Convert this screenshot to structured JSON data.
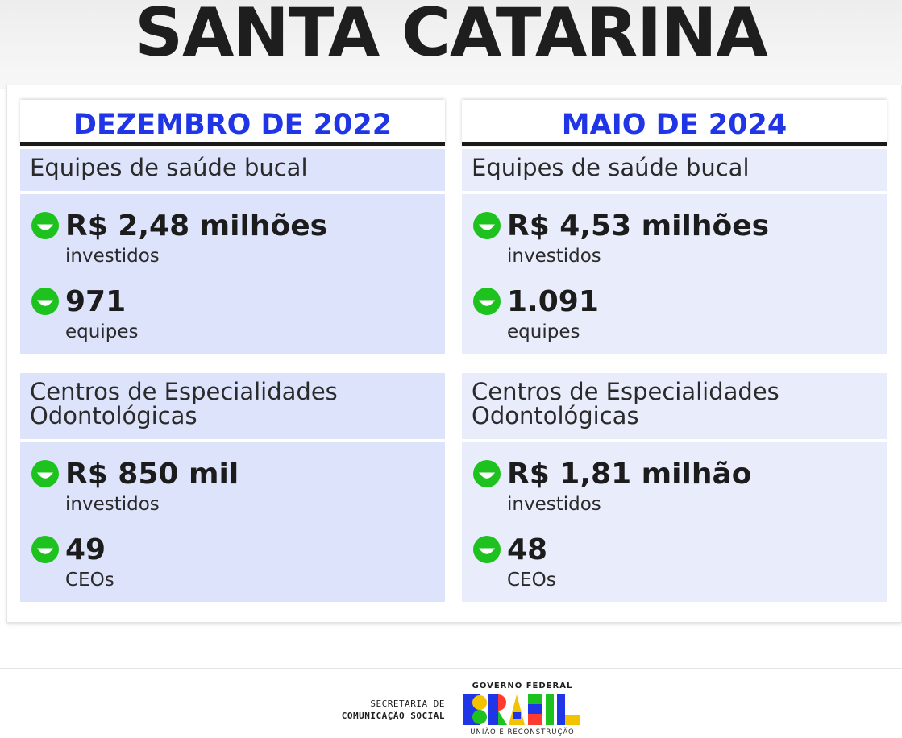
{
  "title": "SANTA CATARINA",
  "columns": [
    {
      "header": "DEZEMBRO DE 2022",
      "sections": [
        {
          "label_line1": "Equipes de saúde bucal",
          "label_line2": "",
          "metrics": [
            {
              "value": "R$ 2,48 milhões",
              "caption": "investidos"
            },
            {
              "value": "971",
              "caption": "equipes"
            }
          ]
        },
        {
          "label_line1": "Centros de Especialidades",
          "label_line2": "Odontológicas",
          "metrics": [
            {
              "value": "R$ 850 mil",
              "caption": "investidos"
            },
            {
              "value": "49",
              "caption": "CEOs"
            }
          ]
        }
      ]
    },
    {
      "header": "MAIO DE 2024",
      "sections": [
        {
          "label_line1": "Equipes de saúde bucal",
          "label_line2": "",
          "metrics": [
            {
              "value": "R$ 4,53 milhões",
              "caption": "investidos"
            },
            {
              "value": "1.091",
              "caption": "equipes"
            }
          ]
        },
        {
          "label_line1": "Centros de Especialidades",
          "label_line2": "Odontológicas",
          "metrics": [
            {
              "value": "R$ 1,81 milhão",
              "caption": "investidos"
            },
            {
              "value": "48",
              "caption": "CEOs"
            }
          ]
        }
      ]
    }
  ],
  "footer": {
    "secretaria_line1": "SECRETARIA DE",
    "secretaria_line2": "COMUNICAÇÃO SOCIAL",
    "logo_top": "GOVERNO FEDERAL",
    "logo_word": "BRASIL",
    "logo_bottom": "UNIÃO E RECONSTRUÇÃO"
  },
  "colors": {
    "header_blue": "#1f35e6",
    "smiley_green": "#1ec21e",
    "panel_left": "#dde3fb",
    "panel_right": "#e9edfb"
  },
  "icons": [
    "smiley-icon"
  ]
}
